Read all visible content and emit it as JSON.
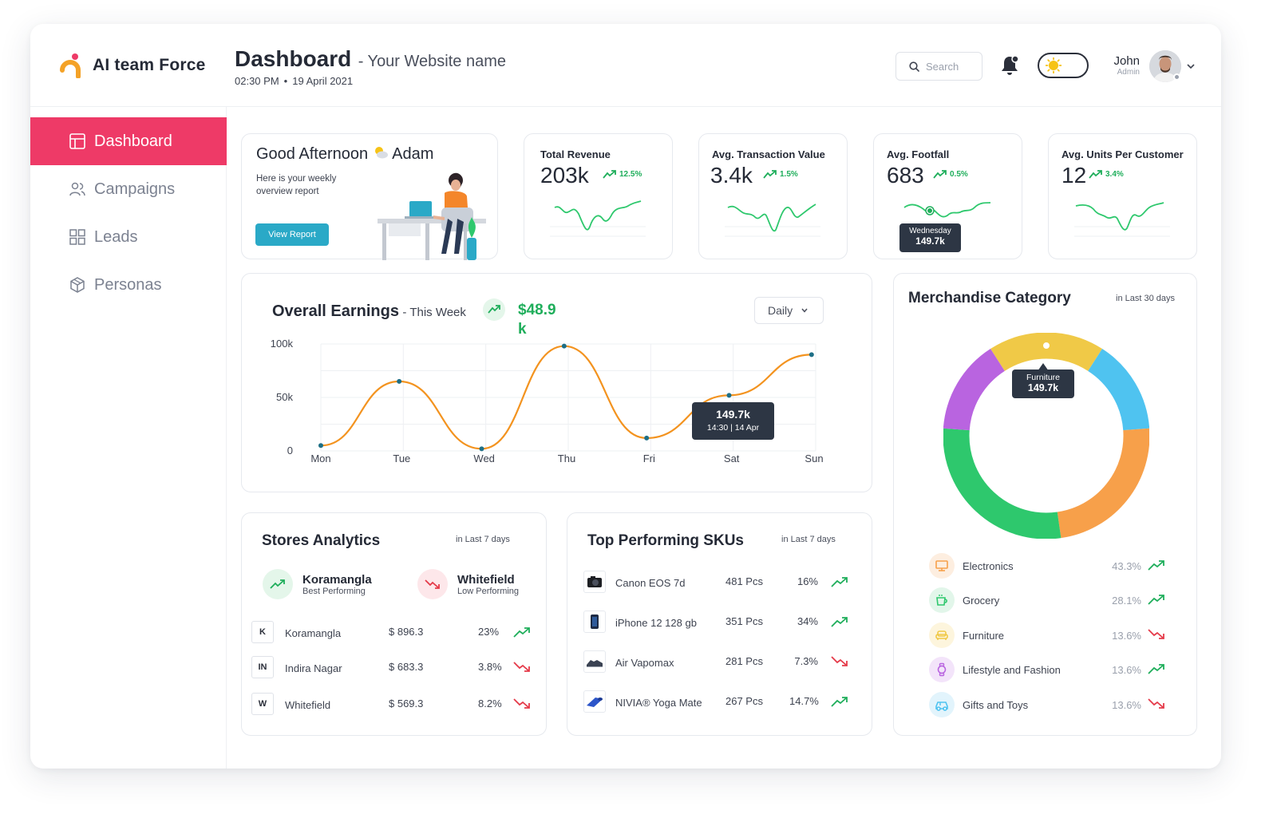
{
  "brand": {
    "name": "AI team Force"
  },
  "header": {
    "title": "Dashboard",
    "subtitle": "- Your Website name",
    "time": "02:30 PM",
    "separator": "•",
    "date": "19 April 2021",
    "search_placeholder": "Search",
    "user_name": "John",
    "user_role": "Admin"
  },
  "sidebar": {
    "items": [
      {
        "label": "Dashboard",
        "icon": "layout-icon",
        "active": true
      },
      {
        "label": "Campaigns",
        "icon": "users-icon",
        "active": false
      },
      {
        "label": "Leads",
        "icon": "grid-icon",
        "active": false
      },
      {
        "label": "Personas",
        "icon": "cube-icon",
        "active": false
      }
    ]
  },
  "greeting": {
    "title": "Good Afternoon",
    "name": "Adam",
    "subtitle": "Here is your weekly overview report",
    "button": "View Report"
  },
  "kpis": [
    {
      "label": "Total Revenue",
      "value": "203k",
      "change": "12.5%"
    },
    {
      "label": "Avg. Transaction Value",
      "value": "3.4k",
      "change": "1.5%"
    },
    {
      "label": "Avg. Footfall",
      "value": "683",
      "change": "0.5%",
      "tooltip_day": "Wednesday",
      "tooltip_value": "149.7k"
    },
    {
      "label": "Avg. Units Per Customer",
      "value": "12",
      "change": "3.4%"
    }
  ],
  "earnings": {
    "title": "Overall Earnings",
    "period": "- This Week",
    "amount": "$48.9k",
    "dropdown": "Daily",
    "tooltip_value": "149.7k",
    "tooltip_time": "14:30",
    "tooltip_sep": "|",
    "tooltip_date": "14 Apr"
  },
  "chart_data": {
    "type": "line",
    "title": "Overall Earnings",
    "categories": [
      "Mon",
      "Tue",
      "Wed",
      "Thu",
      "Fri",
      "Sat",
      "Sun"
    ],
    "x_positions": [
      0,
      1,
      2,
      3,
      4,
      5,
      6
    ],
    "series": [
      {
        "name": "Earnings",
        "x": [
          0,
          0.95,
          1.95,
          2.95,
          3.95,
          4.95,
          5.95
        ],
        "values": [
          5,
          65,
          2,
          98,
          12,
          52,
          90
        ]
      }
    ],
    "y_ticks": [
      "100k",
      "50k",
      "0"
    ],
    "ylim": [
      0,
      100
    ],
    "grid": true,
    "color": "#f3931f"
  },
  "stores": {
    "title": "Stores Analytics",
    "period": "in Last 7 days",
    "best": {
      "name": "Koramangla",
      "label": "Best Performing"
    },
    "worst": {
      "name": "Whitefield",
      "label": "Low Performing"
    },
    "rows": [
      {
        "initial": "K",
        "name": "Koramangla",
        "amount": "$ 896.3",
        "pct": "23%",
        "trend": "up"
      },
      {
        "initial": "IN",
        "name": "Indira Nagar",
        "amount": "$ 683.3",
        "pct": "3.8%",
        "trend": "down"
      },
      {
        "initial": "W",
        "name": "Whitefield",
        "amount": "$ 569.3",
        "pct": "8.2%",
        "trend": "down"
      }
    ]
  },
  "skus": {
    "title": "Top Performing SKUs",
    "period": "in Last 7 days",
    "rows": [
      {
        "name": "Canon EOS 7d",
        "qty": "481 Pcs",
        "pct": "16%",
        "trend": "up",
        "icon": "camera-icon"
      },
      {
        "name": "iPhone 12 128 gb",
        "qty": "351 Pcs",
        "pct": "34%",
        "trend": "up",
        "icon": "phone-icon"
      },
      {
        "name": "Air Vapomax",
        "qty": "281 Pcs",
        "pct": "7.3%",
        "trend": "down",
        "icon": "shoe-icon"
      },
      {
        "name": "NIVIA® Yoga Mate",
        "qty": "267 Pcs",
        "pct": "14.7%",
        "trend": "up",
        "icon": "mat-icon"
      }
    ]
  },
  "merch": {
    "title": "Merchandise Category",
    "period": "in Last 30 days",
    "tooltip_label": "Furniture",
    "tooltip_value": "149.7k",
    "rows": [
      {
        "name": "Electronics",
        "pct": "43.3%",
        "trend": "up",
        "icon": "monitor-icon",
        "color": "#f7a04a",
        "bg": "#fdeee0"
      },
      {
        "name": "Grocery",
        "pct": "28.1%",
        "trend": "up",
        "icon": "cup-icon",
        "color": "#2ec86d",
        "bg": "#e2f6ea"
      },
      {
        "name": "Furniture",
        "pct": "13.6%",
        "trend": "down",
        "icon": "sofa-icon",
        "color": "#f0c947",
        "bg": "#fdf5dd"
      },
      {
        "name": "Lifestyle and Fashion",
        "pct": "13.6%",
        "trend": "up",
        "icon": "watch-icon",
        "color": "#b964e0",
        "bg": "#f3e4fa"
      },
      {
        "name": "Gifts and Toys",
        "pct": "13.6%",
        "trend": "down",
        "icon": "car-icon",
        "color": "#4fc3f0",
        "bg": "#e2f4fc"
      }
    ],
    "donut": [
      {
        "name": "Furniture",
        "value": 16,
        "color": "#f0c947"
      },
      {
        "name": "Gifts and Toys",
        "value": 13,
        "color": "#4fc3f0"
      },
      {
        "name": "Electronics",
        "value": 21,
        "color": "#f7a04a"
      },
      {
        "name": "Grocery",
        "value": 25,
        "color": "#2ec86d"
      },
      {
        "name": "Lifestyle and Fashion",
        "value": 13,
        "color": "#b964e0"
      }
    ]
  },
  "colors": {
    "accent": "#ee3a67",
    "up": "#1fae5b",
    "down": "#e53b4a",
    "button": "#2aa9c7"
  }
}
